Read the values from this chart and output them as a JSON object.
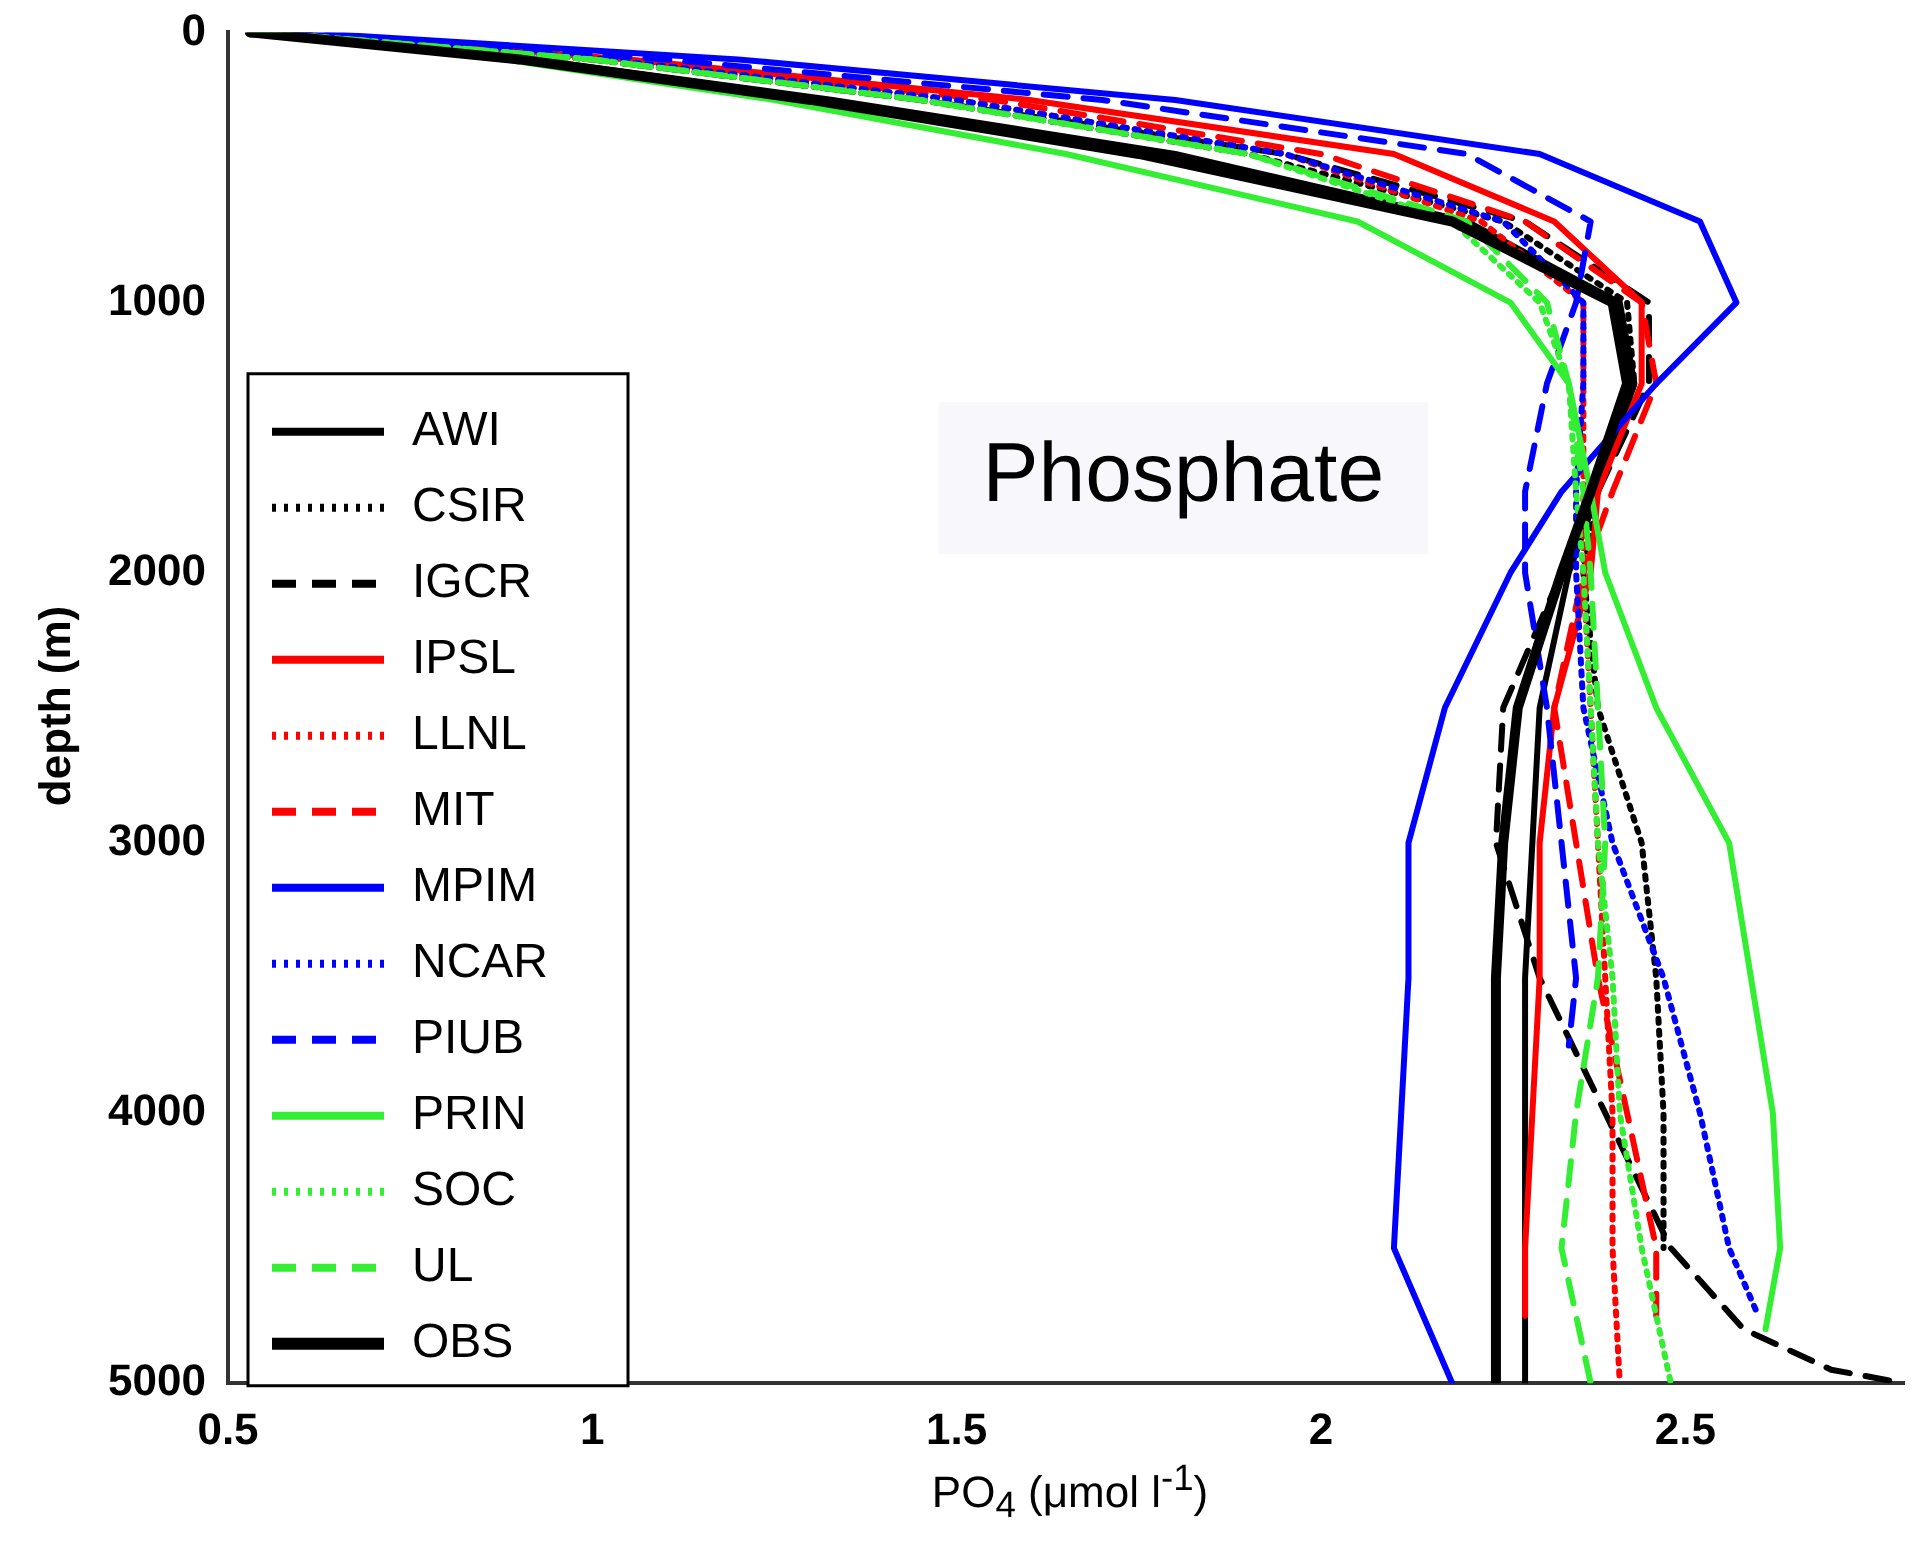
{
  "chart_data": {
    "type": "line",
    "xlabel": "PO$_{4}$ (μmol l$^{-1}$)",
    "ylabel": "depth (m)",
    "annotations": [
      "Phosphate"
    ],
    "xlim": [
      0.5,
      2.8
    ],
    "xticks": [
      0.5,
      1,
      1.5,
      2,
      2.5
    ],
    "ylim": [
      5000,
      0
    ],
    "yticks": [
      0,
      1000,
      2000,
      3000,
      4000,
      5000
    ],
    "grid": false,
    "legend": "left",
    "marker": "none",
    "series": [
      {
        "name": "AWI",
        "color": "#000000",
        "line_style": "solid",
        "x": [
          0.53,
          0.92,
          1.33,
          1.8,
          2.2,
          2.41,
          2.43,
          2.38,
          2.34,
          2.3,
          2.29,
          2.28,
          2.28
        ],
        "values": [
          0,
          100,
          250,
          450,
          700,
          1000,
          1300,
          1700,
          2000,
          2500,
          3000,
          3500,
          5000
        ]
      },
      {
        "name": "CSIR",
        "color": "#000000",
        "line_style": "dotted",
        "x": [
          0.55,
          1.0,
          1.45,
          1.9,
          2.25,
          2.42,
          2.43,
          2.38,
          2.36,
          2.38,
          2.44,
          2.46,
          2.47,
          2.47
        ],
        "values": [
          0,
          100,
          250,
          450,
          700,
          1000,
          1300,
          1700,
          2000,
          2500,
          3000,
          3500,
          4000,
          4500
        ]
      },
      {
        "name": "IGCR",
        "color": "#000000",
        "line_style": "dashed",
        "x": [
          0.55,
          1.0,
          1.45,
          1.95,
          2.28,
          2.45,
          2.45,
          2.38,
          2.33,
          2.25,
          2.24,
          2.3,
          2.39,
          2.48,
          2.58,
          2.7,
          2.8
        ],
        "values": [
          0,
          100,
          250,
          450,
          700,
          1000,
          1300,
          1700,
          2000,
          2500,
          3000,
          3500,
          4000,
          4500,
          4800,
          4950,
          5000
        ]
      },
      {
        "name": "IPSL",
        "color": "#ff0000",
        "line_style": "solid",
        "x": [
          0.56,
          1.05,
          1.6,
          2.1,
          2.32,
          2.44,
          2.44,
          2.38,
          2.37,
          2.32,
          2.3,
          2.3,
          2.29,
          2.28,
          2.28
        ],
        "values": [
          0,
          100,
          250,
          450,
          700,
          1000,
          1300,
          1700,
          2000,
          2500,
          3000,
          3500,
          4000,
          4500,
          4750
        ]
      },
      {
        "name": "LLNL",
        "color": "#ff0000",
        "line_style": "dotted",
        "x": [
          0.55,
          1.0,
          1.5,
          1.95,
          2.22,
          2.36,
          2.36,
          2.36,
          2.36,
          2.37,
          2.38,
          2.39,
          2.4,
          2.4,
          2.41
        ],
        "values": [
          0,
          100,
          250,
          450,
          700,
          1000,
          1300,
          1700,
          2000,
          2500,
          3000,
          3500,
          4000,
          4500,
          5000
        ]
      },
      {
        "name": "MIT",
        "color": "#ff0000",
        "line_style": "dashed",
        "x": [
          0.55,
          1.02,
          1.55,
          2.0,
          2.28,
          2.44,
          2.46,
          2.4,
          2.36,
          2.32,
          2.35,
          2.38,
          2.42,
          2.46,
          2.46
        ],
        "values": [
          0,
          100,
          250,
          450,
          700,
          1000,
          1300,
          1700,
          2000,
          2500,
          3000,
          3500,
          4000,
          4500,
          4750
        ]
      },
      {
        "name": "MPIM",
        "color": "#0000ff",
        "line_style": "solid",
        "x": [
          0.6,
          1.2,
          1.8,
          2.3,
          2.52,
          2.57,
          2.46,
          2.33,
          2.26,
          2.17,
          2.12,
          2.12,
          2.11,
          2.1,
          2.18
        ],
        "values": [
          0,
          100,
          250,
          450,
          700,
          1000,
          1300,
          1700,
          2000,
          2500,
          3000,
          3500,
          4000,
          4500,
          5000
        ]
      },
      {
        "name": "NCAR",
        "color": "#0000ff",
        "line_style": "dotted",
        "x": [
          0.55,
          1.02,
          1.5,
          1.95,
          2.25,
          2.36,
          2.36,
          2.35,
          2.35,
          2.36,
          2.4,
          2.47,
          2.52,
          2.56,
          2.6
        ],
        "values": [
          0,
          100,
          250,
          450,
          700,
          1000,
          1300,
          1700,
          2000,
          2500,
          3000,
          3500,
          4000,
          4500,
          4750
        ]
      },
      {
        "name": "PIUB",
        "color": "#0000ff",
        "line_style": "dashed",
        "x": [
          0.58,
          1.1,
          1.7,
          2.2,
          2.37,
          2.35,
          2.31,
          2.28,
          2.28,
          2.31,
          2.33,
          2.35,
          2.34
        ],
        "values": [
          0,
          100,
          250,
          450,
          700,
          1000,
          1300,
          1700,
          2000,
          2500,
          3000,
          3500,
          3750
        ]
      },
      {
        "name": "PRIN",
        "color": "#33ee33",
        "line_style": "solid",
        "x": [
          0.53,
          0.88,
          1.25,
          1.65,
          2.05,
          2.26,
          2.34,
          2.37,
          2.39,
          2.46,
          2.56,
          2.59,
          2.62,
          2.63,
          2.61
        ],
        "values": [
          0,
          100,
          250,
          450,
          700,
          1000,
          1300,
          1700,
          2000,
          2500,
          3000,
          3500,
          4000,
          4500,
          4800
        ]
      },
      {
        "name": "SOC",
        "color": "#33ee33",
        "line_style": "dotted",
        "x": [
          0.55,
          1.0,
          1.45,
          1.9,
          2.18,
          2.3,
          2.34,
          2.35,
          2.36,
          2.37,
          2.38,
          2.4,
          2.41,
          2.44,
          2.48
        ],
        "values": [
          0,
          100,
          250,
          450,
          700,
          1000,
          1300,
          1700,
          2000,
          2500,
          3000,
          3500,
          4000,
          4500,
          5000
        ]
      },
      {
        "name": "UL",
        "color": "#33ee33",
        "line_style": "dashed",
        "x": [
          0.55,
          1.0,
          1.45,
          1.9,
          2.2,
          2.31,
          2.34,
          2.36,
          2.37,
          2.38,
          2.39,
          2.38,
          2.35,
          2.33,
          2.37
        ],
        "values": [
          0,
          100,
          250,
          450,
          700,
          1000,
          1300,
          1700,
          2000,
          2500,
          3000,
          3500,
          4000,
          4500,
          5000
        ]
      },
      {
        "name": "OBS",
        "color": "#000000",
        "line_style": "solid",
        "x": [
          0.53,
          0.9,
          1.3,
          1.75,
          2.18,
          2.4,
          2.42,
          2.37,
          2.33,
          2.27,
          2.25,
          2.24,
          2.24
        ],
        "values": [
          0,
          100,
          250,
          450,
          700,
          1000,
          1300,
          1700,
          2000,
          2500,
          3000,
          3500,
          5000
        ]
      }
    ]
  }
}
